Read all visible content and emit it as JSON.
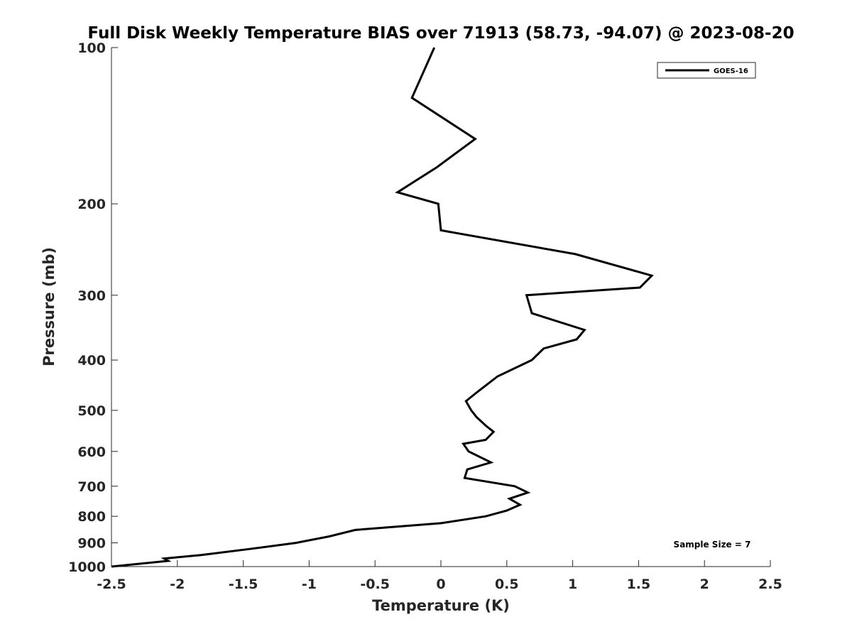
{
  "chart_data": {
    "type": "line",
    "title": "Full Disk Weekly Temperature BIAS over 71913 (58.73, -94.07) @ 2023-08-20",
    "xlabel": "Temperature (K)",
    "ylabel": "Pressure (mb)",
    "xlim": [
      -2.5,
      2.5
    ],
    "ylim": [
      100,
      1000
    ],
    "y_scale": "log",
    "y_reversed": true,
    "x_ticks": [
      -2.5,
      -2,
      -1.5,
      -1,
      -0.5,
      0,
      0.5,
      1,
      1.5,
      2,
      2.5
    ],
    "x_tick_labels": [
      "-2.5",
      "-2",
      "-1.5",
      "-1",
      "-0.5",
      "0",
      "0.5",
      "1",
      "1.5",
      "2",
      "2.5"
    ],
    "y_ticks": [
      100,
      200,
      300,
      400,
      500,
      600,
      700,
      800,
      900,
      1000
    ],
    "y_tick_labels": [
      "100",
      "200",
      "300",
      "400",
      "500",
      "600",
      "700",
      "800",
      "900",
      "1000"
    ],
    "grid": false,
    "legend_position": "top-right",
    "annotation": "Sample Size = 7",
    "series": [
      {
        "name": "GOES-16",
        "color": "#000000",
        "points": [
          [
            -0.05,
            100
          ],
          [
            -0.22,
            125
          ],
          [
            0.26,
            150
          ],
          [
            -0.03,
            170
          ],
          [
            -0.33,
            190
          ],
          [
            -0.02,
            200
          ],
          [
            0.0,
            225
          ],
          [
            1.02,
            250
          ],
          [
            1.6,
            275
          ],
          [
            1.51,
            290
          ],
          [
            0.65,
            300
          ],
          [
            0.69,
            325
          ],
          [
            1.09,
            350
          ],
          [
            1.03,
            365
          ],
          [
            0.78,
            380
          ],
          [
            0.69,
            400
          ],
          [
            0.43,
            430
          ],
          [
            0.28,
            460
          ],
          [
            0.19,
            480
          ],
          [
            0.23,
            500
          ],
          [
            0.27,
            515
          ],
          [
            0.34,
            535
          ],
          [
            0.4,
            550
          ],
          [
            0.34,
            570
          ],
          [
            0.17,
            580
          ],
          [
            0.21,
            600
          ],
          [
            0.38,
            630
          ],
          [
            0.2,
            650
          ],
          [
            0.18,
            675
          ],
          [
            0.56,
            700
          ],
          [
            0.66,
            720
          ],
          [
            0.52,
            740
          ],
          [
            0.6,
            760
          ],
          [
            0.5,
            780
          ],
          [
            0.34,
            800
          ],
          [
            0.0,
            825
          ],
          [
            -0.65,
            850
          ],
          [
            -0.85,
            875
          ],
          [
            -1.1,
            900
          ],
          [
            -1.45,
            925
          ],
          [
            -1.82,
            950
          ],
          [
            -2.1,
            965
          ],
          [
            -2.07,
            975
          ],
          [
            -2.5,
            1000
          ]
        ]
      }
    ]
  }
}
